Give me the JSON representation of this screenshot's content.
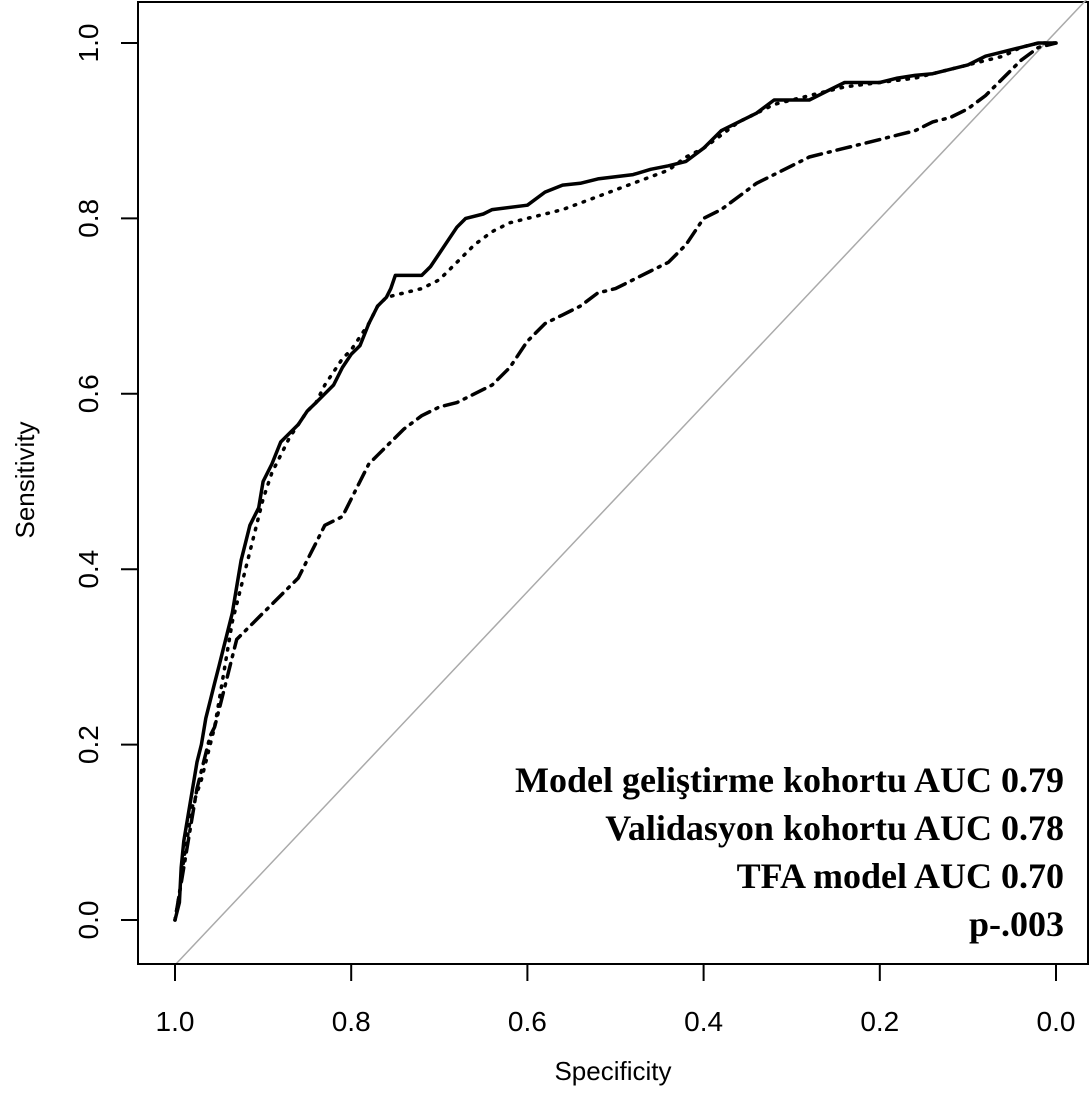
{
  "chart_data": {
    "type": "line",
    "title": "",
    "xlabel": "Specificity",
    "ylabel": "Sensitivity",
    "xlim": [
      1.0,
      0.0
    ],
    "ylim": [
      0.0,
      1.0
    ],
    "x_reversed": true,
    "grid": false,
    "x_ticks": [
      "1.0",
      "0.8",
      "0.6",
      "0.4",
      "0.2",
      "0.0"
    ],
    "y_ticks": [
      "0.0",
      "0.2",
      "0.4",
      "0.6",
      "0.8",
      "1.0"
    ],
    "series": [
      {
        "line_style": "solid",
        "color": "#000000",
        "points": [
          [
            1.0,
            0.0
          ],
          [
            0.995,
            0.02
          ],
          [
            0.993,
            0.06
          ],
          [
            0.99,
            0.09
          ],
          [
            0.985,
            0.12
          ],
          [
            0.98,
            0.15
          ],
          [
            0.975,
            0.18
          ],
          [
            0.97,
            0.2
          ],
          [
            0.965,
            0.23
          ],
          [
            0.96,
            0.25
          ],
          [
            0.955,
            0.27
          ],
          [
            0.95,
            0.29
          ],
          [
            0.945,
            0.31
          ],
          [
            0.94,
            0.33
          ],
          [
            0.935,
            0.35
          ],
          [
            0.93,
            0.38
          ],
          [
            0.925,
            0.41
          ],
          [
            0.92,
            0.43
          ],
          [
            0.915,
            0.45
          ],
          [
            0.91,
            0.46
          ],
          [
            0.905,
            0.47
          ],
          [
            0.9,
            0.5
          ],
          [
            0.89,
            0.52
          ],
          [
            0.88,
            0.545
          ],
          [
            0.87,
            0.555
          ],
          [
            0.86,
            0.565
          ],
          [
            0.85,
            0.58
          ],
          [
            0.84,
            0.59
          ],
          [
            0.83,
            0.6
          ],
          [
            0.82,
            0.61
          ],
          [
            0.81,
            0.63
          ],
          [
            0.8,
            0.645
          ],
          [
            0.79,
            0.655
          ],
          [
            0.78,
            0.68
          ],
          [
            0.77,
            0.7
          ],
          [
            0.76,
            0.71
          ],
          [
            0.755,
            0.72
          ],
          [
            0.75,
            0.735
          ],
          [
            0.72,
            0.735
          ],
          [
            0.71,
            0.745
          ],
          [
            0.7,
            0.76
          ],
          [
            0.69,
            0.775
          ],
          [
            0.68,
            0.79
          ],
          [
            0.67,
            0.8
          ],
          [
            0.65,
            0.805
          ],
          [
            0.64,
            0.81
          ],
          [
            0.6,
            0.815
          ],
          [
            0.58,
            0.83
          ],
          [
            0.56,
            0.838
          ],
          [
            0.54,
            0.84
          ],
          [
            0.52,
            0.845
          ],
          [
            0.48,
            0.85
          ],
          [
            0.46,
            0.856
          ],
          [
            0.44,
            0.86
          ],
          [
            0.42,
            0.865
          ],
          [
            0.4,
            0.88
          ],
          [
            0.38,
            0.9
          ],
          [
            0.36,
            0.91
          ],
          [
            0.34,
            0.92
          ],
          [
            0.32,
            0.935
          ],
          [
            0.28,
            0.935
          ],
          [
            0.26,
            0.945
          ],
          [
            0.24,
            0.955
          ],
          [
            0.2,
            0.955
          ],
          [
            0.18,
            0.96
          ],
          [
            0.16,
            0.963
          ],
          [
            0.14,
            0.965
          ],
          [
            0.12,
            0.97
          ],
          [
            0.1,
            0.975
          ],
          [
            0.08,
            0.985
          ],
          [
            0.06,
            0.99
          ],
          [
            0.04,
            0.995
          ],
          [
            0.02,
            1.0
          ],
          [
            0.0,
            1.0
          ]
        ]
      },
      {
        "line_style": "dotted",
        "color": "#000000",
        "points": [
          [
            1.0,
            0.0
          ],
          [
            0.995,
            0.03
          ],
          [
            0.99,
            0.07
          ],
          [
            0.985,
            0.1
          ],
          [
            0.98,
            0.13
          ],
          [
            0.97,
            0.16
          ],
          [
            0.965,
            0.18
          ],
          [
            0.96,
            0.2
          ],
          [
            0.955,
            0.22
          ],
          [
            0.95,
            0.25
          ],
          [
            0.945,
            0.28
          ],
          [
            0.94,
            0.31
          ],
          [
            0.935,
            0.34
          ],
          [
            0.93,
            0.36
          ],
          [
            0.925,
            0.38
          ],
          [
            0.92,
            0.4
          ],
          [
            0.915,
            0.42
          ],
          [
            0.91,
            0.44
          ],
          [
            0.905,
            0.46
          ],
          [
            0.9,
            0.48
          ],
          [
            0.89,
            0.51
          ],
          [
            0.88,
            0.53
          ],
          [
            0.87,
            0.55
          ],
          [
            0.86,
            0.565
          ],
          [
            0.85,
            0.58
          ],
          [
            0.84,
            0.59
          ],
          [
            0.83,
            0.61
          ],
          [
            0.82,
            0.625
          ],
          [
            0.81,
            0.64
          ],
          [
            0.8,
            0.65
          ],
          [
            0.79,
            0.665
          ],
          [
            0.78,
            0.68
          ],
          [
            0.77,
            0.7
          ],
          [
            0.76,
            0.71
          ],
          [
            0.74,
            0.715
          ],
          [
            0.72,
            0.72
          ],
          [
            0.7,
            0.73
          ],
          [
            0.68,
            0.75
          ],
          [
            0.66,
            0.77
          ],
          [
            0.64,
            0.785
          ],
          [
            0.62,
            0.795
          ],
          [
            0.6,
            0.8
          ],
          [
            0.56,
            0.81
          ],
          [
            0.52,
            0.825
          ],
          [
            0.48,
            0.84
          ],
          [
            0.44,
            0.855
          ],
          [
            0.42,
            0.87
          ],
          [
            0.4,
            0.88
          ],
          [
            0.38,
            0.895
          ],
          [
            0.36,
            0.91
          ],
          [
            0.34,
            0.92
          ],
          [
            0.32,
            0.93
          ],
          [
            0.28,
            0.94
          ],
          [
            0.24,
            0.95
          ],
          [
            0.2,
            0.955
          ],
          [
            0.16,
            0.96
          ],
          [
            0.12,
            0.97
          ],
          [
            0.08,
            0.98
          ],
          [
            0.06,
            0.985
          ],
          [
            0.04,
            0.995
          ],
          [
            0.02,
            1.0
          ],
          [
            0.0,
            1.0
          ]
        ]
      },
      {
        "line_style": "dotdash",
        "color": "#000000",
        "points": [
          [
            1.0,
            0.0
          ],
          [
            0.995,
            0.03
          ],
          [
            0.99,
            0.06
          ],
          [
            0.985,
            0.09
          ],
          [
            0.98,
            0.12
          ],
          [
            0.975,
            0.15
          ],
          [
            0.97,
            0.17
          ],
          [
            0.965,
            0.19
          ],
          [
            0.96,
            0.21
          ],
          [
            0.955,
            0.22
          ],
          [
            0.95,
            0.24
          ],
          [
            0.945,
            0.26
          ],
          [
            0.94,
            0.28
          ],
          [
            0.935,
            0.3
          ],
          [
            0.93,
            0.32
          ],
          [
            0.92,
            0.33
          ],
          [
            0.91,
            0.34
          ],
          [
            0.9,
            0.35
          ],
          [
            0.89,
            0.36
          ],
          [
            0.88,
            0.37
          ],
          [
            0.87,
            0.38
          ],
          [
            0.86,
            0.39
          ],
          [
            0.85,
            0.41
          ],
          [
            0.84,
            0.43
          ],
          [
            0.83,
            0.45
          ],
          [
            0.81,
            0.46
          ],
          [
            0.8,
            0.48
          ],
          [
            0.79,
            0.5
          ],
          [
            0.78,
            0.52
          ],
          [
            0.77,
            0.53
          ],
          [
            0.76,
            0.54
          ],
          [
            0.75,
            0.55
          ],
          [
            0.74,
            0.56
          ],
          [
            0.72,
            0.575
          ],
          [
            0.7,
            0.585
          ],
          [
            0.68,
            0.59
          ],
          [
            0.66,
            0.6
          ],
          [
            0.64,
            0.61
          ],
          [
            0.62,
            0.63
          ],
          [
            0.6,
            0.66
          ],
          [
            0.58,
            0.68
          ],
          [
            0.56,
            0.69
          ],
          [
            0.54,
            0.7
          ],
          [
            0.52,
            0.715
          ],
          [
            0.5,
            0.72
          ],
          [
            0.48,
            0.73
          ],
          [
            0.46,
            0.74
          ],
          [
            0.44,
            0.75
          ],
          [
            0.42,
            0.77
          ],
          [
            0.4,
            0.8
          ],
          [
            0.38,
            0.81
          ],
          [
            0.36,
            0.825
          ],
          [
            0.34,
            0.84
          ],
          [
            0.32,
            0.85
          ],
          [
            0.3,
            0.86
          ],
          [
            0.28,
            0.87
          ],
          [
            0.26,
            0.875
          ],
          [
            0.24,
            0.88
          ],
          [
            0.22,
            0.885
          ],
          [
            0.2,
            0.89
          ],
          [
            0.18,
            0.895
          ],
          [
            0.16,
            0.9
          ],
          [
            0.14,
            0.91
          ],
          [
            0.12,
            0.915
          ],
          [
            0.1,
            0.925
          ],
          [
            0.08,
            0.94
          ],
          [
            0.06,
            0.96
          ],
          [
            0.04,
            0.98
          ],
          [
            0.02,
            0.995
          ],
          [
            0.0,
            1.0
          ]
        ]
      }
    ],
    "reference_line": {
      "from": [
        1.0,
        0.0
      ],
      "to": [
        0.0,
        1.0
      ],
      "color": "#aaaaaa"
    },
    "annotations": [
      "Model geliştirme kohortu AUC 0.79",
      "Validasyon kohortu AUC 0.78",
      "TFA model AUC 0.70",
      "p-.003"
    ]
  }
}
